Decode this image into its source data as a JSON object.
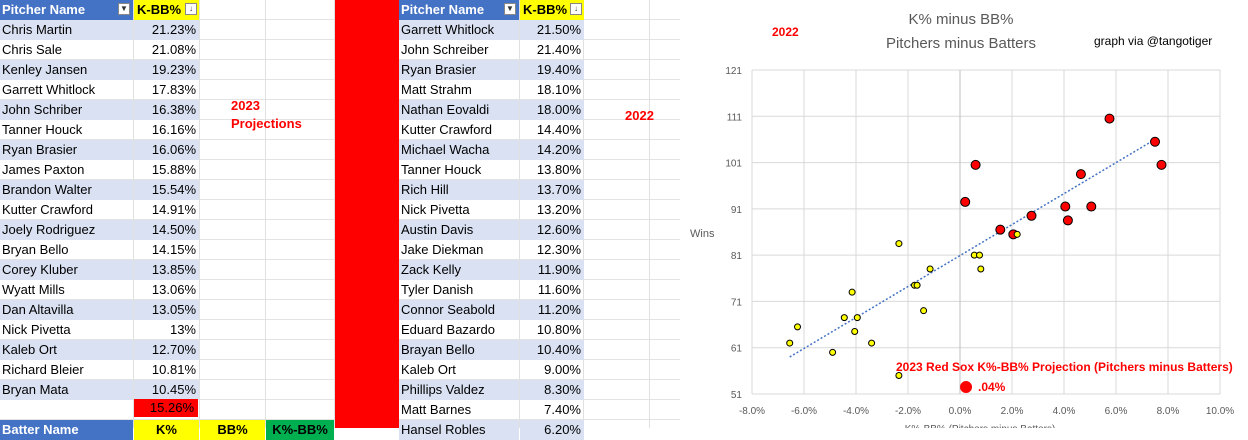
{
  "left_table": {
    "headers": {
      "pitcher": "Pitcher Name",
      "kbb": "K-BB%"
    },
    "rows": [
      {
        "name": "Chris Martin",
        "value": "21.23%"
      },
      {
        "name": "Chris Sale",
        "value": "21.08%"
      },
      {
        "name": "Kenley Jansen",
        "value": "19.23%"
      },
      {
        "name": "Garrett Whitlock",
        "value": "17.83%"
      },
      {
        "name": "John Schriber",
        "value": "16.38%"
      },
      {
        "name": "Tanner Houck",
        "value": "16.16%"
      },
      {
        "name": "Ryan Brasier",
        "value": "16.06%"
      },
      {
        "name": "James Paxton",
        "value": "15.88%"
      },
      {
        "name": "Brandon Walter",
        "value": "15.54%"
      },
      {
        "name": "Kutter Crawford",
        "value": "14.91%"
      },
      {
        "name": "Joely Rodriguez",
        "value": "14.50%"
      },
      {
        "name": "Bryan Bello",
        "value": "14.15%"
      },
      {
        "name": "Corey Kluber",
        "value": "13.85%"
      },
      {
        "name": "Wyatt Mills",
        "value": "13.06%"
      },
      {
        "name": "Dan Altavilla",
        "value": "13.05%"
      },
      {
        "name": "Nick Pivetta",
        "value": "13%"
      },
      {
        "name": "Kaleb Ort",
        "value": "12.70%"
      },
      {
        "name": "Richard Bleier",
        "value": "10.81%"
      },
      {
        "name": "Bryan Mata",
        "value": "10.45%"
      }
    ],
    "average": "15.26%",
    "label_2023": "2023",
    "label_projections": "Projections"
  },
  "batter_header": {
    "name": "Batter Name",
    "k": "K%",
    "bb": "BB%",
    "kbb": "K%-BB%"
  },
  "right_table": {
    "headers": {
      "pitcher": "Pitcher Name",
      "kbb": "K-BB%"
    },
    "rows": [
      {
        "name": "Garrett Whitlock",
        "value": "21.50%"
      },
      {
        "name": "John Schreiber",
        "value": "21.40%"
      },
      {
        "name": "Ryan Brasier",
        "value": "19.40%"
      },
      {
        "name": "Matt Strahm",
        "value": "18.10%"
      },
      {
        "name": "Nathan Eovaldi",
        "value": "18.00%"
      },
      {
        "name": "Kutter Crawford",
        "value": "14.40%"
      },
      {
        "name": "Michael Wacha",
        "value": "14.20%"
      },
      {
        "name": "Tanner Houck",
        "value": "13.80%"
      },
      {
        "name": "Rich Hill",
        "value": "13.70%"
      },
      {
        "name": "Nick Pivetta",
        "value": "13.20%"
      },
      {
        "name": "Austin Davis",
        "value": "12.60%"
      },
      {
        "name": "Jake Diekman",
        "value": "12.30%"
      },
      {
        "name": "Zack Kelly",
        "value": "11.90%"
      },
      {
        "name": "Tyler Danish",
        "value": "11.60%"
      },
      {
        "name": "Connor Seabold",
        "value": "11.20%"
      },
      {
        "name": "Eduard Bazardo",
        "value": "10.80%"
      },
      {
        "name": "Brayan Bello",
        "value": "10.40%"
      },
      {
        "name": "Kaleb Ort",
        "value": "9.00%"
      },
      {
        "name": "Phillips Valdez",
        "value": "8.30%"
      },
      {
        "name": "Matt Barnes",
        "value": "7.40%"
      },
      {
        "name": "Hansel Robles",
        "value": "6.20%"
      }
    ],
    "label_2022": "2022"
  },
  "chart_data": {
    "type": "scatter",
    "title": "K% minus BB%",
    "subtitle": "Pitchers minus Batters",
    "ylabel": "Wins",
    "xlabel": "K%-BB% (Pitchers minus Batters)",
    "xlim": [
      -0.08,
      0.1
    ],
    "ylim": [
      51,
      121
    ],
    "x_ticks": [
      "-8.0%",
      "-6.0%",
      "-4.0%",
      "-2.0%",
      "0.0%",
      "2.0%",
      "4.0%",
      "6.0%",
      "8.0%",
      "10.0%"
    ],
    "y_ticks": [
      "51",
      "61",
      "71",
      "81",
      "91",
      "101",
      "111",
      "121"
    ],
    "grid": true,
    "trendline": true,
    "annotations": {
      "year": "2022",
      "credit": "graph via @tangotiger",
      "projection_label": "2023 Red Sox K%-BB% Projection (Pitchers minus Batters)",
      "projection_value": ".04%"
    },
    "colors": {
      "red": "#ff0000",
      "yellow": "#ffff00",
      "trend": "#4472c4"
    },
    "series": [
      {
        "color": "red",
        "points": [
          [
            0.0575,
            110.5
          ],
          [
            0.075,
            105.5
          ],
          [
            0.0775,
            100.5
          ],
          [
            0.006,
            100.5
          ],
          [
            0.0465,
            98.5
          ],
          [
            0.002,
            92.5
          ],
          [
            0.0505,
            91.5
          ],
          [
            0.0405,
            91.5
          ],
          [
            0.0275,
            89.5
          ],
          [
            0.0415,
            88.5
          ],
          [
            0.0155,
            86.5
          ],
          [
            0.0205,
            85.5
          ]
        ]
      },
      {
        "color": "yellow",
        "points": [
          [
            -0.0235,
            83.5
          ],
          [
            0.022,
            85.5
          ],
          [
            0.0055,
            81
          ],
          [
            0.0075,
            81
          ],
          [
            -0.0115,
            78
          ],
          [
            0.008,
            78
          ],
          [
            -0.0175,
            74.5
          ],
          [
            -0.0165,
            74.5
          ],
          [
            -0.0415,
            73
          ],
          [
            -0.014,
            69
          ],
          [
            -0.0445,
            67.5
          ],
          [
            -0.0395,
            67.5
          ],
          [
            -0.0625,
            65.5
          ],
          [
            -0.0405,
            64.5
          ],
          [
            -0.034,
            62
          ],
          [
            -0.0655,
            62
          ],
          [
            -0.049,
            60
          ],
          [
            -0.0235,
            55
          ]
        ]
      }
    ],
    "trend_line": [
      [
        -0.0655,
        59
      ],
      [
        0.075,
        106
      ]
    ],
    "projection_point": [
      0.0004,
      52.5
    ]
  }
}
